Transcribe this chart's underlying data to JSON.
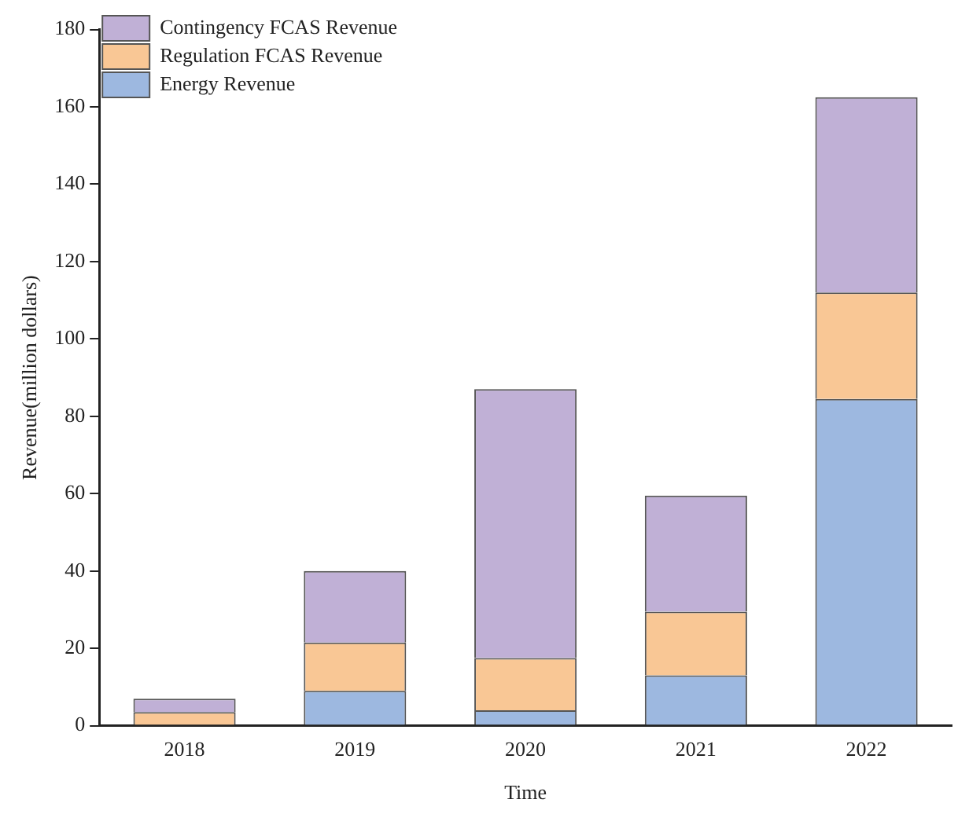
{
  "chart_data": {
    "type": "bar",
    "stacked": true,
    "xlabel": "Time",
    "ylabel": "Revenue(million dollars)",
    "categories": [
      "2018",
      "2019",
      "2020",
      "2021",
      "2022"
    ],
    "series": [
      {
        "name": "Energy Revenue",
        "color": "#9db8e0",
        "values": [
          0,
          9,
          4,
          13,
          84.5
        ]
      },
      {
        "name": "Regulation FCAS Revenue",
        "color": "#f9c795",
        "values": [
          3.5,
          12.5,
          13.5,
          16.5,
          27.5
        ]
      },
      {
        "name": "Contingency FCAS Revenue",
        "color": "#c0b0d6",
        "values": [
          3.5,
          18.5,
          69.5,
          30,
          50.5
        ]
      }
    ],
    "ylim": [
      0,
      180
    ],
    "yticks": [
      0,
      20,
      40,
      60,
      80,
      100,
      120,
      140,
      160,
      180
    ],
    "grid": false,
    "legend": "top left"
  }
}
